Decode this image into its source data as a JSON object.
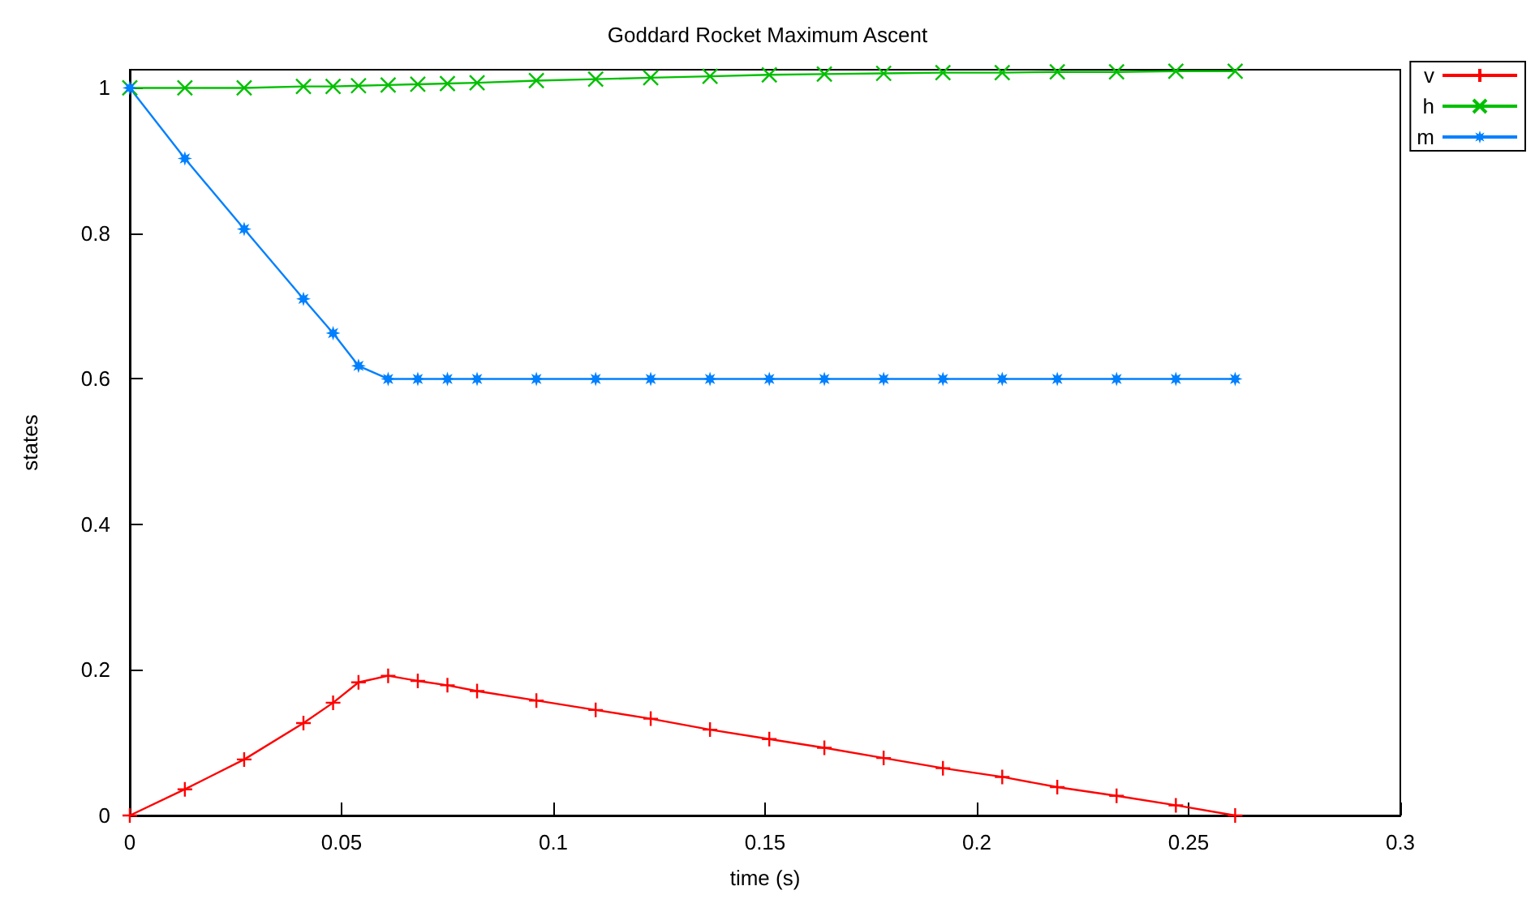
{
  "chart_data": {
    "type": "line",
    "title": "Goddard Rocket Maximum Ascent",
    "xlabel": "time (s)",
    "ylabel": "states",
    "x": [
      0,
      0.013,
      0.027,
      0.041,
      0.048,
      0.054,
      0.061,
      0.068,
      0.075,
      0.082,
      0.096,
      0.11,
      0.123,
      0.137,
      0.151,
      0.164,
      0.178,
      0.192,
      0.206,
      0.219,
      0.233,
      0.247,
      0.261
    ],
    "series": [
      {
        "name": "v",
        "color": "#ff0000",
        "marker": "plus",
        "values": [
          0,
          0.036,
          0.077,
          0.127,
          0.155,
          0.183,
          0.192,
          0.185,
          0.179,
          0.171,
          0.158,
          0.145,
          0.133,
          0.118,
          0.105,
          0.093,
          0.079,
          0.065,
          0.053,
          0.039,
          0.027,
          0.014,
          0
        ]
      },
      {
        "name": "h",
        "color": "#00c000",
        "marker": "cross",
        "values": [
          1,
          1,
          1,
          1.002,
          1.002,
          1.003,
          1.004,
          1.005,
          1.006,
          1.007,
          1.01,
          1.012,
          1.014,
          1.016,
          1.018,
          1.019,
          1.02,
          1.021,
          1.021,
          1.022,
          1.022,
          1.023,
          1.023
        ]
      },
      {
        "name": "m",
        "color": "#0080ff",
        "marker": "star",
        "values": [
          1,
          0.903,
          0.806,
          0.71,
          0.663,
          0.618,
          0.6,
          0.6,
          0.6,
          0.6,
          0.6,
          0.6,
          0.6,
          0.6,
          0.6,
          0.6,
          0.6,
          0.6,
          0.6,
          0.6,
          0.6,
          0.6,
          0.6
        ]
      }
    ],
    "xlim": [
      0,
      0.3
    ],
    "xticks": [
      0,
      0.05,
      0.1,
      0.15,
      0.2,
      0.25,
      0.3
    ],
    "ylim": [
      0,
      1.025
    ],
    "yticks": [
      0,
      0.2,
      0.4,
      0.6,
      0.8,
      1
    ],
    "grid": false,
    "legend": "top right",
    "line_style": "solid"
  }
}
